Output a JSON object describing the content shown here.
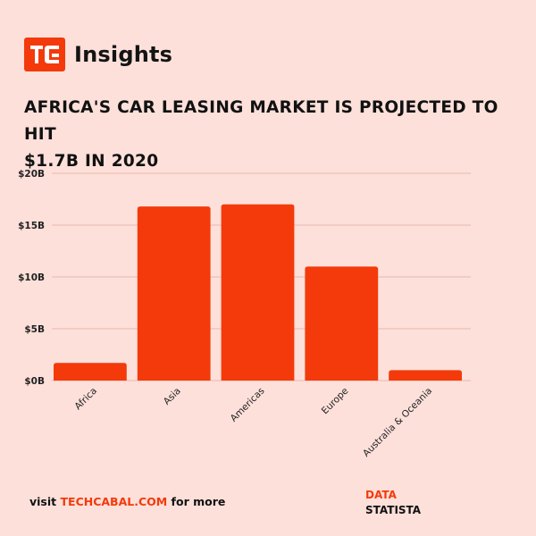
{
  "brand": {
    "logo_letters": "TC",
    "name": "Insights",
    "accent_color": "#f43a0b"
  },
  "headline": {
    "line1": "AFRICA'S CAR LEASING MARKET IS PROJECTED TO HIT",
    "line2": "$1.7B IN 2020"
  },
  "chart_data": {
    "type": "bar",
    "categories": [
      "Africa",
      "Asia",
      "Americas",
      "Europe",
      "Australia & Oceania"
    ],
    "values": [
      1.7,
      16.8,
      17.0,
      11.0,
      1.0
    ],
    "unit": "B USD",
    "ylim": [
      0,
      20
    ],
    "yticks": [
      0,
      5,
      10,
      15,
      20
    ],
    "ytick_labels": [
      "$0B",
      "$5B",
      "$10B",
      "$15B",
      "$20B"
    ],
    "title": "",
    "xlabel": "",
    "ylabel": "",
    "grid": true,
    "bar_color": "#f43a0b",
    "grid_color": "#e9b8ae"
  },
  "footer": {
    "prefix": "visit ",
    "site": "TECHCABAL.COM",
    "suffix": " for more",
    "data_label": "DATA",
    "source": "STATISTA"
  }
}
